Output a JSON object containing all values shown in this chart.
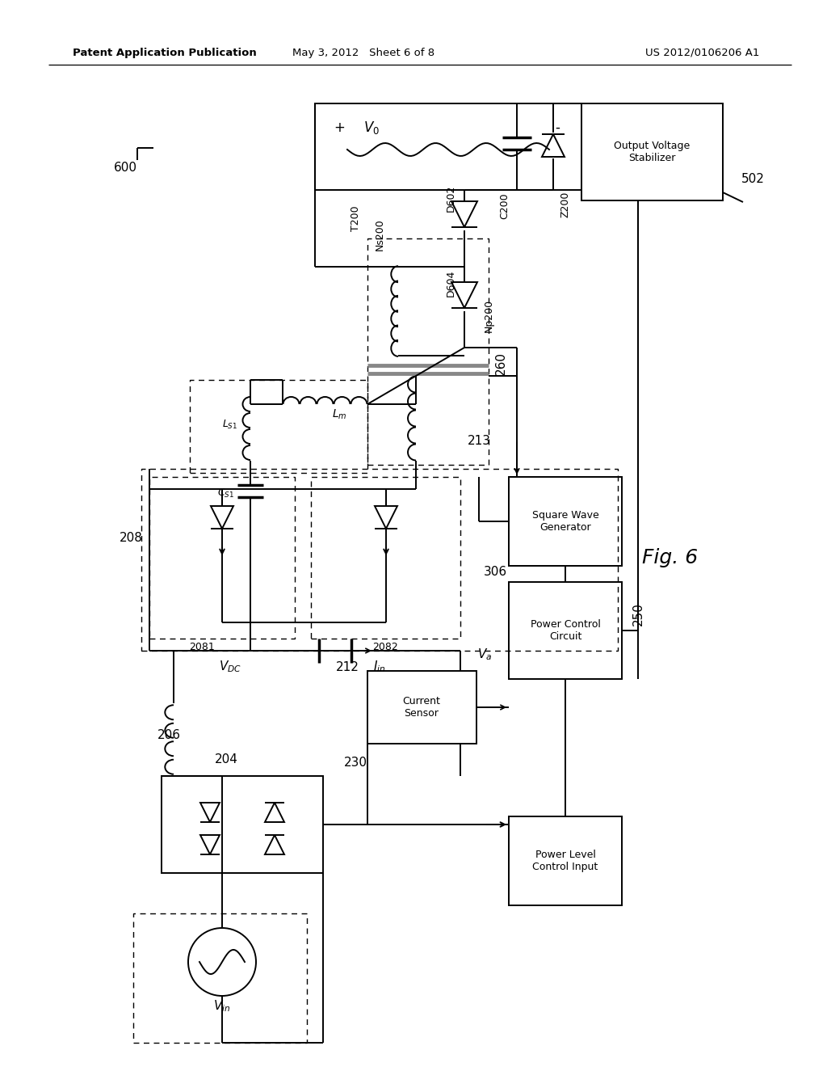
{
  "bg_color": "#ffffff",
  "header_left": "Patent Application Publication",
  "header_mid": "May 3, 2012   Sheet 6 of 8",
  "header_right": "US 2012/0106206 A1"
}
